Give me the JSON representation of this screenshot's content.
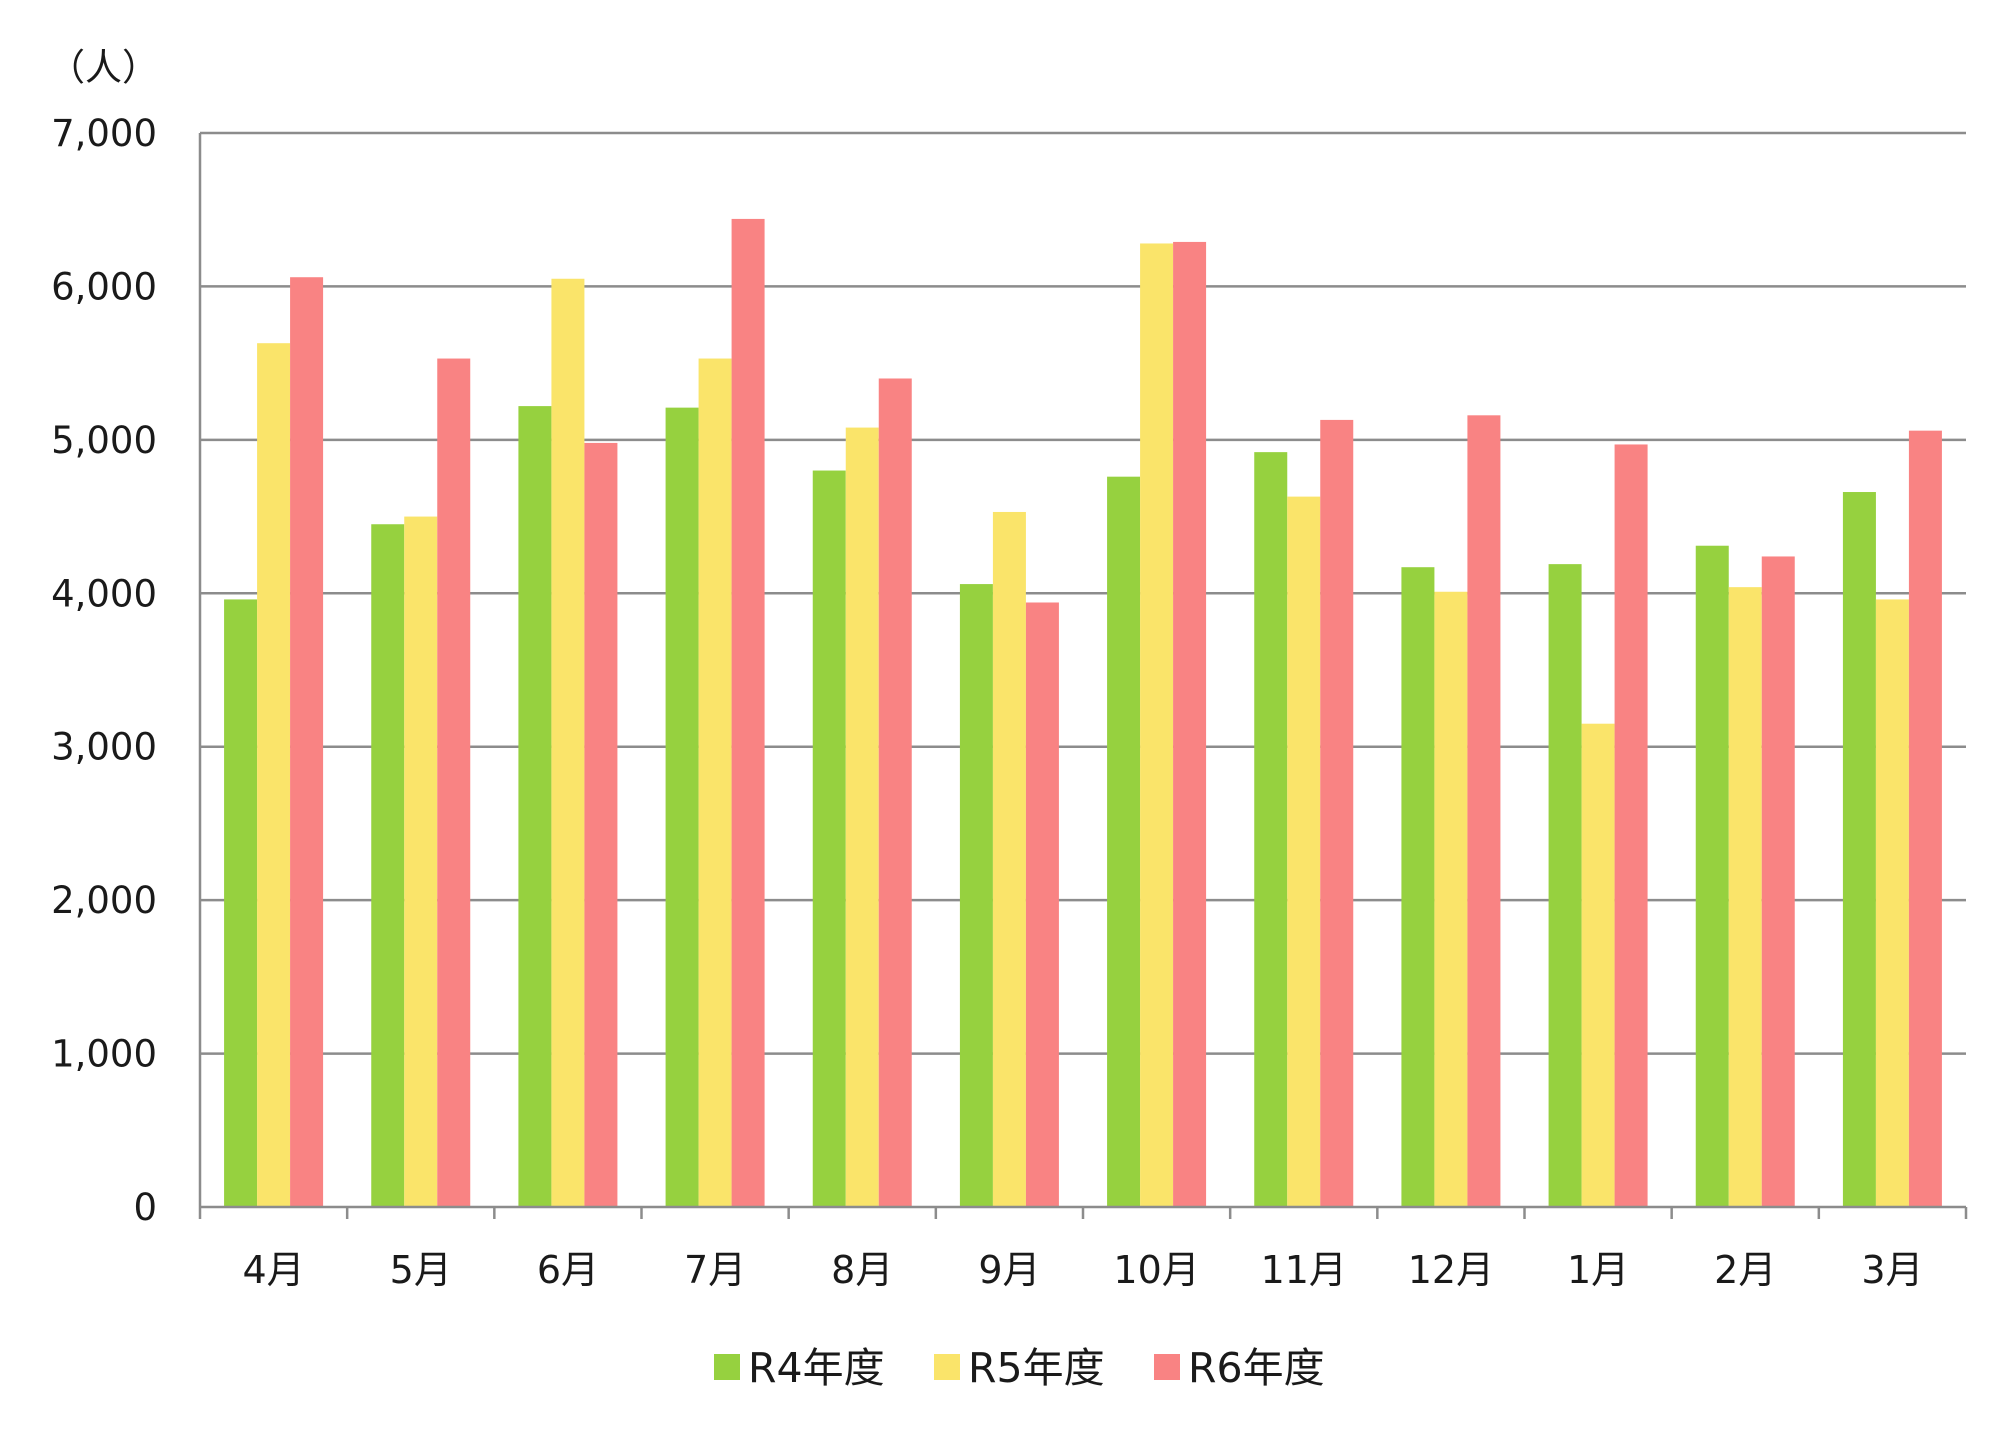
{
  "chart_data": {
    "type": "bar",
    "unit_label": "（人）",
    "categories": [
      "4月",
      "5月",
      "6月",
      "7月",
      "8月",
      "9月",
      "10月",
      "11月",
      "12月",
      "1月",
      "2月",
      "3月"
    ],
    "series": [
      {
        "name": "R4年度",
        "color": "#96d13f",
        "values": [
          3960,
          4450,
          5220,
          5210,
          4800,
          4060,
          4760,
          4920,
          4170,
          4190,
          4310,
          4660
        ]
      },
      {
        "name": "R5年度",
        "color": "#fae46a",
        "values": [
          5630,
          4500,
          6050,
          5530,
          5080,
          4530,
          6280,
          4630,
          4010,
          3150,
          4040,
          3960
        ]
      },
      {
        "name": "R6年度",
        "color": "#f98383",
        "values": [
          6060,
          5530,
          4980,
          6440,
          5400,
          3940,
          6290,
          5130,
          5160,
          4970,
          4240,
          5060
        ]
      }
    ],
    "y_ticks": [
      "0",
      "1,000",
      "2,000",
      "3,000",
      "4,000",
      "5,000",
      "6,000",
      "7,000"
    ],
    "ylim": [
      0,
      7000
    ],
    "grid": true,
    "legend_position": "bottom"
  }
}
